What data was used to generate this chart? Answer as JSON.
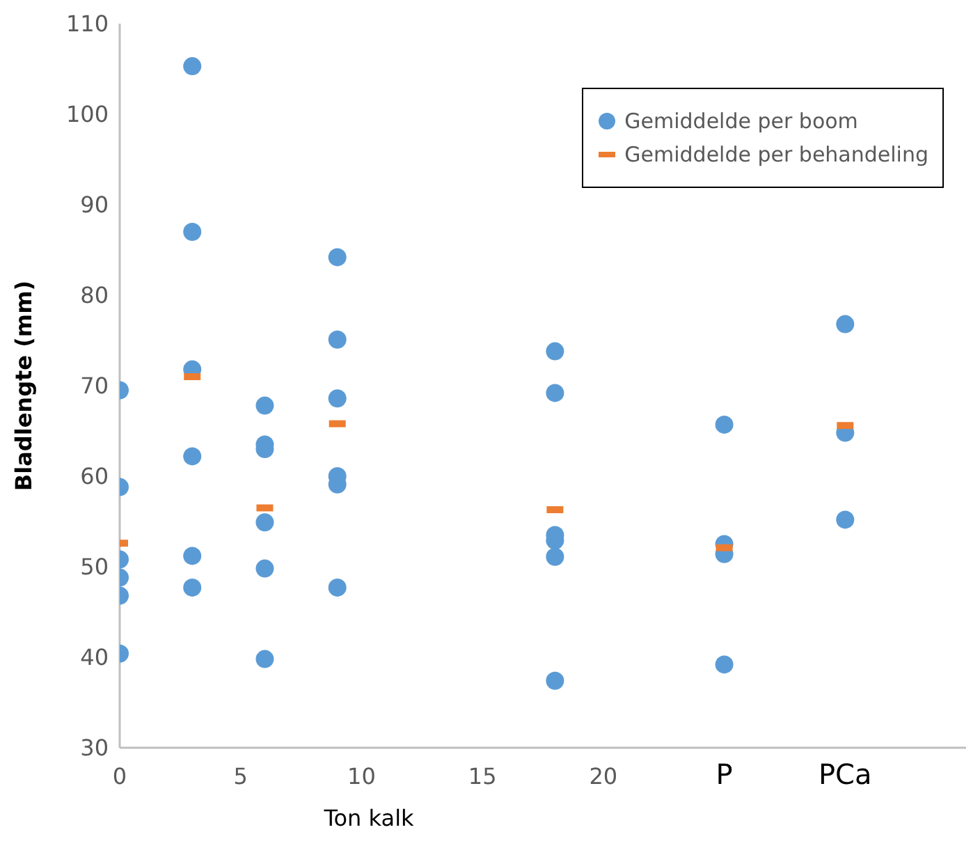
{
  "chart_data": {
    "type": "scatter",
    "xlabel": "Ton kalk",
    "ylabel": "Bladlengte (mm)",
    "xlim": [
      0,
      35
    ],
    "xticks": [
      0,
      5,
      10,
      15,
      20,
      {
        "value": 25,
        "label": "P"
      },
      {
        "value": 30,
        "label": "PCa"
      }
    ],
    "ylim": [
      30,
      110
    ],
    "yticks": [
      30,
      40,
      50,
      60,
      70,
      80,
      90,
      100,
      110
    ],
    "grid": false,
    "legend": "top right",
    "series": [
      {
        "name": "Gemiddelde per boom",
        "color": "#5b9bd5",
        "marker": "circle",
        "x": [
          0,
          0,
          0,
          0,
          0,
          0,
          3,
          3,
          3,
          3,
          3,
          3,
          6,
          6,
          6,
          6,
          6,
          6,
          9,
          9,
          9,
          9,
          9,
          9,
          18,
          18,
          18,
          18,
          18,
          18,
          25,
          25,
          25,
          25,
          30,
          30,
          30
        ],
        "values": [
          69.5,
          58.8,
          50.8,
          48.8,
          46.8,
          40.4,
          105.3,
          87.0,
          71.8,
          62.2,
          51.2,
          47.7,
          67.8,
          63.5,
          63.0,
          54.9,
          49.8,
          39.8,
          84.2,
          75.1,
          68.6,
          60.0,
          59.1,
          47.7,
          73.8,
          69.2,
          53.5,
          52.9,
          51.1,
          37.4,
          65.7,
          52.5,
          51.4,
          39.2,
          76.8,
          64.8,
          55.2
        ]
      },
      {
        "name": "Gemiddelde per behandeling",
        "color": "#ed7d31",
        "marker": "square",
        "x": [
          0,
          3,
          6,
          9,
          18,
          25,
          30
        ],
        "values": [
          52.6,
          71.0,
          56.5,
          65.8,
          56.3,
          52.1,
          65.6
        ]
      }
    ]
  }
}
